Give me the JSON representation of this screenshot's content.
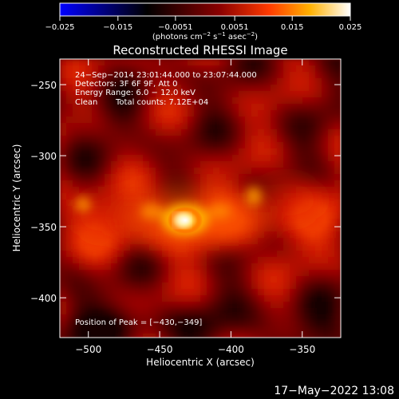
{
  "chart_data": {
    "type": "heatmap",
    "title": "Reconstructed RHESSI Image",
    "xlabel": "Heliocentric X (arcsec)",
    "ylabel": "Heliocentric Y (arcsec)",
    "xlim": [
      -520,
      -323
    ],
    "ylim": [
      -428,
      -232
    ],
    "x_ticks": [
      -500,
      -450,
      -400,
      -350
    ],
    "x_tick_labels": [
      "−500",
      "−450",
      "−400",
      "−350"
    ],
    "y_ticks": [
      -250,
      -300,
      -350,
      -400
    ],
    "y_tick_labels": [
      "−250",
      "−300",
      "−350",
      "−400"
    ],
    "colorbar": {
      "range": [
        -0.025,
        0.025
      ],
      "ticks": [
        -0.025,
        -0.015,
        -0.0051,
        0.0051,
        0.015,
        0.025
      ],
      "tick_labels": [
        "−0.025",
        "−0.015",
        "−0.0051",
        "0.0051",
        "0.015",
        "0.025"
      ],
      "units_main": "(photons cm",
      "units_sup1": "−2",
      "units_mid": " s",
      "units_sup2": "−1",
      "units_mid2": " asec",
      "units_sup3": "−2",
      "units_end": ")",
      "colors": [
        "#0000ff",
        "#000000",
        "#8a0000",
        "#ff3a00",
        "#ffb000",
        "#ffffff"
      ]
    },
    "annotations": {
      "time_range": "24−Sep−2014 23:01:44.000 to 23:07:44.000",
      "detectors": "Detectors: 3F 6F 9F, Att 0",
      "energy": "Energy Range: 6.0 − 12.0 keV",
      "method": "Clean",
      "total_counts": "Total counts: 7.12E+04",
      "peak": "Position of Peak = [−430,−349]"
    },
    "peak": [
      -430,
      -349
    ]
  },
  "footer": {
    "timestamp": "17−May−2022 13:08"
  }
}
